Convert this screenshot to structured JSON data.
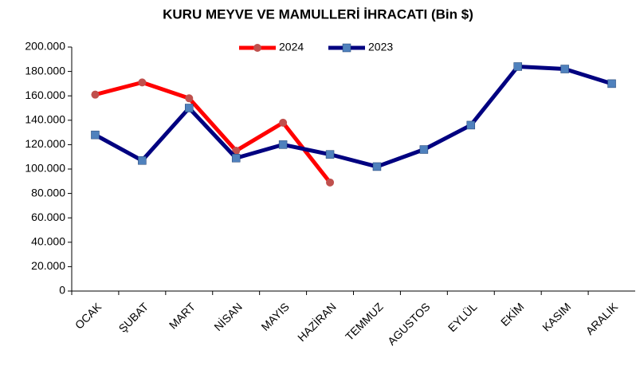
{
  "chart_data": {
    "type": "line",
    "title": "KURU MEYVE VE MAMULLERİ İHRACATI (Bin $)",
    "categories": [
      "OCAK",
      "ŞUBAT",
      "MART",
      "NİSAN",
      "MAYIS",
      "HAZİRAN",
      "TEMMUZ",
      "AGUSTOS",
      "EYLÜL",
      "EKİM",
      "KASIM",
      "ARALIK"
    ],
    "series": [
      {
        "name": "2024",
        "color": "#ff0000",
        "marker_color": "#c0504d",
        "marker": "circle",
        "values": [
          161000,
          171000,
          158000,
          115000,
          138000,
          89000,
          null,
          null,
          null,
          null,
          null,
          null
        ]
      },
      {
        "name": "2023",
        "color": "#000080",
        "marker_color": "#4f81bd",
        "marker": "square",
        "values": [
          128000,
          107000,
          150000,
          109000,
          120000,
          112000,
          102000,
          116000,
          136000,
          184000,
          182000,
          170000
        ]
      }
    ],
    "ylim": [
      0,
      200000
    ],
    "yticks": [
      0,
      {
        "value": 20000,
        "label": "20.000"
      },
      {
        "value": 40000,
        "label": "40.000"
      },
      {
        "value": 60000,
        "label": "60.000"
      },
      {
        "value": 80000,
        "label": "80.000"
      },
      {
        "value": 100000,
        "label": "100.000"
      },
      {
        "value": 120000,
        "label": "120.000"
      },
      {
        "value": 140000,
        "label": "140.000"
      },
      {
        "value": 160000,
        "label": "160.000"
      },
      {
        "value": 180000,
        "label": "180.000"
      },
      {
        "value": 200000,
        "label": "200.000"
      }
    ],
    "grid": false,
    "legend": "top"
  }
}
